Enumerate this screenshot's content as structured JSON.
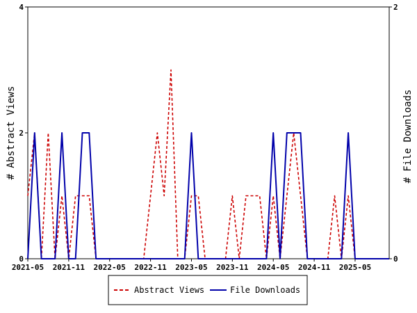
{
  "chart_data": {
    "type": "line",
    "x_tick_labels": [
      "2021-05",
      "2021-11",
      "2022-05",
      "2022-11",
      "2023-05",
      "2023-11",
      "2024-05",
      "2024-11",
      "2025-05"
    ],
    "x_range": [
      "2021-05",
      "2025-10"
    ],
    "ylabel_left": "# Abstract Views",
    "ylabel_right": "# File Downloads",
    "ylim_left": [
      0,
      4
    ],
    "ylim_right": [
      0,
      2
    ],
    "yticks_left": [
      "0",
      "2",
      "4"
    ],
    "yticks_right": [
      "0",
      "2"
    ],
    "legend_position": "bottom-center",
    "grid": false,
    "series": [
      {
        "name": "Abstract Views",
        "axis": "left",
        "color": "#cc0000",
        "style": "dashed",
        "points": [
          [
            "2021-05",
            1
          ],
          [
            "2021-06",
            2
          ],
          [
            "2021-07",
            0
          ],
          [
            "2021-08",
            2
          ],
          [
            "2021-09",
            0
          ],
          [
            "2021-10",
            1
          ],
          [
            "2021-11",
            0
          ],
          [
            "2021-12",
            1
          ],
          [
            "2022-01",
            1
          ],
          [
            "2022-02",
            1
          ],
          [
            "2022-03",
            0
          ],
          [
            "2022-04",
            0
          ],
          [
            "2022-05",
            0
          ],
          [
            "2022-06",
            0
          ],
          [
            "2022-07",
            0
          ],
          [
            "2022-08",
            0
          ],
          [
            "2022-09",
            0
          ],
          [
            "2022-10",
            0
          ],
          [
            "2022-11",
            1
          ],
          [
            "2022-12",
            2
          ],
          [
            "2023-01",
            1
          ],
          [
            "2023-02",
            3
          ],
          [
            "2023-03",
            0
          ],
          [
            "2023-04",
            0
          ],
          [
            "2023-05",
            1
          ],
          [
            "2023-06",
            1
          ],
          [
            "2023-07",
            0
          ],
          [
            "2023-08",
            0
          ],
          [
            "2023-09",
            0
          ],
          [
            "2023-10",
            0
          ],
          [
            "2023-11",
            1
          ],
          [
            "2023-12",
            0
          ],
          [
            "2024-01",
            1
          ],
          [
            "2024-02",
            1
          ],
          [
            "2024-03",
            1
          ],
          [
            "2024-04",
            0
          ],
          [
            "2024-05",
            1
          ],
          [
            "2024-06",
            0
          ],
          [
            "2024-07",
            1
          ],
          [
            "2024-08",
            2
          ],
          [
            "2024-09",
            1
          ],
          [
            "2024-10",
            0
          ],
          [
            "2024-11",
            0
          ],
          [
            "2024-12",
            0
          ],
          [
            "2025-01",
            0
          ],
          [
            "2025-02",
            1
          ],
          [
            "2025-03",
            0
          ],
          [
            "2025-04",
            1
          ],
          [
            "2025-05",
            0
          ],
          [
            "2025-06",
            0
          ],
          [
            "2025-07",
            0
          ],
          [
            "2025-08",
            0
          ],
          [
            "2025-09",
            0
          ],
          [
            "2025-10",
            0
          ]
        ]
      },
      {
        "name": "File Downloads",
        "axis": "right",
        "color": "#0000aa",
        "style": "solid",
        "points": [
          [
            "2021-05",
            0
          ],
          [
            "2021-06",
            1
          ],
          [
            "2021-07",
            0
          ],
          [
            "2021-08",
            0
          ],
          [
            "2021-09",
            0
          ],
          [
            "2021-10",
            1
          ],
          [
            "2021-11",
            0
          ],
          [
            "2021-12",
            0
          ],
          [
            "2022-01",
            1
          ],
          [
            "2022-02",
            1
          ],
          [
            "2022-03",
            0
          ],
          [
            "2022-04",
            0
          ],
          [
            "2022-05",
            0
          ],
          [
            "2022-06",
            0
          ],
          [
            "2022-07",
            0
          ],
          [
            "2022-08",
            0
          ],
          [
            "2022-09",
            0
          ],
          [
            "2022-10",
            0
          ],
          [
            "2022-11",
            0
          ],
          [
            "2022-12",
            0
          ],
          [
            "2023-01",
            0
          ],
          [
            "2023-02",
            0
          ],
          [
            "2023-03",
            0
          ],
          [
            "2023-04",
            0
          ],
          [
            "2023-05",
            1
          ],
          [
            "2023-06",
            0
          ],
          [
            "2023-07",
            0
          ],
          [
            "2023-08",
            0
          ],
          [
            "2023-09",
            0
          ],
          [
            "2023-10",
            0
          ],
          [
            "2023-11",
            0
          ],
          [
            "2023-12",
            0
          ],
          [
            "2024-01",
            0
          ],
          [
            "2024-02",
            0
          ],
          [
            "2024-03",
            0
          ],
          [
            "2024-04",
            0
          ],
          [
            "2024-05",
            1
          ],
          [
            "2024-06",
            0
          ],
          [
            "2024-07",
            1
          ],
          [
            "2024-08",
            1
          ],
          [
            "2024-09",
            1
          ],
          [
            "2024-10",
            0
          ],
          [
            "2024-11",
            0
          ],
          [
            "2024-12",
            0
          ],
          [
            "2025-01",
            0
          ],
          [
            "2025-02",
            0
          ],
          [
            "2025-03",
            0
          ],
          [
            "2025-04",
            1
          ],
          [
            "2025-05",
            0
          ],
          [
            "2025-06",
            0
          ],
          [
            "2025-07",
            0
          ],
          [
            "2025-08",
            0
          ],
          [
            "2025-09",
            0
          ],
          [
            "2025-10",
            0
          ]
        ]
      }
    ]
  }
}
